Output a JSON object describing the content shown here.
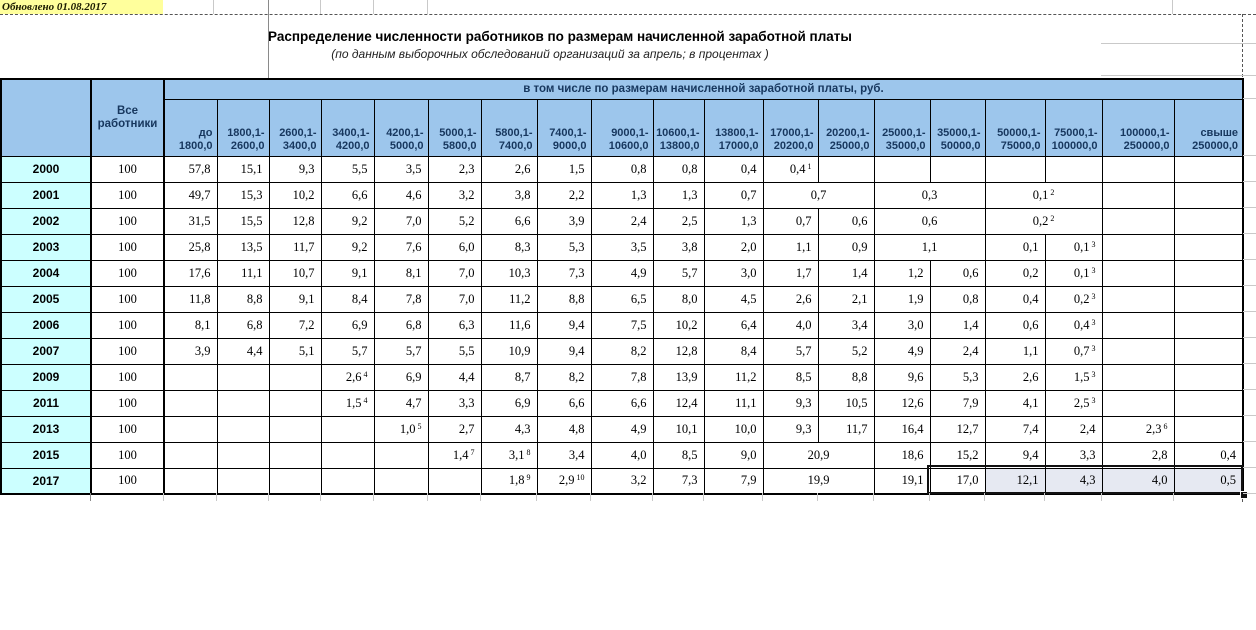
{
  "updated_note": "Обновлено 01.08.2017",
  "title": "Распределение численности работников по размерам начисленной заработной платы",
  "subtitle": "(по данным  выборочных обследований организаций  за апрель; в процентах )",
  "colors": {
    "header_blue": "#9DC6EC",
    "year_cyan": "#CCFFFF",
    "note_yellow": "#FFFF9C",
    "header_text_navy": "#17375E",
    "selection_fill": "#E6E9F2"
  },
  "table": {
    "all_workers_header": "Все\nработники",
    "group_header": "в том числе по размерам начисленной заработной платы, руб.",
    "wage_columns": [
      "до\n1800,0",
      "1800,1-\n2600,0",
      "2600,1-\n3400,0",
      "3400,1-\n4200,0",
      "4200,1-\n5000,0",
      "5000,1-\n5800,0",
      "5800,1-\n7400,0",
      "7400,1-\n9000,0",
      "9000,1-\n10600,0",
      "10600,1-\n13800,0",
      "13800,1-\n17000,0",
      "17000,1-\n20200,0",
      "20200,1-\n25000,0",
      "25000,1-\n35000,0",
      "35000,1-\n50000,0",
      "50000,1-\n75000,0",
      "75000,1-\n100000,0",
      "100000,1-\n250000,0",
      "свыше\n250000,0"
    ],
    "rows": [
      {
        "year": "2000",
        "all": "100",
        "cells": [
          {
            "v": "57,8"
          },
          {
            "v": "15,1"
          },
          {
            "v": "9,3"
          },
          {
            "v": "5,5"
          },
          {
            "v": "3,5"
          },
          {
            "v": "2,3"
          },
          {
            "v": "2,6"
          },
          {
            "v": "1,5"
          },
          {
            "v": "0,8"
          },
          {
            "v": "0,8"
          },
          {
            "v": "0,4"
          },
          {
            "v": "0,4",
            "sup": "1"
          },
          null,
          null,
          null,
          null,
          null,
          null,
          null
        ]
      },
      {
        "year": "2001",
        "all": "100",
        "cells": [
          {
            "v": "49,7"
          },
          {
            "v": "15,3"
          },
          {
            "v": "10,2"
          },
          {
            "v": "6,6"
          },
          {
            "v": "4,6"
          },
          {
            "v": "3,2"
          },
          {
            "v": "3,8"
          },
          {
            "v": "2,2"
          },
          {
            "v": "1,3"
          },
          {
            "v": "1,3"
          },
          {
            "v": "0,7"
          },
          {
            "v": "0,7",
            "span": 2
          },
          {
            "v": "0,3",
            "span": 2
          },
          {
            "v": "0,1",
            "sup": "2",
            "span": 2
          },
          null,
          null
        ]
      },
      {
        "year": "2002",
        "all": "100",
        "cells": [
          {
            "v": "31,5"
          },
          {
            "v": "15,5"
          },
          {
            "v": "12,8"
          },
          {
            "v": "9,2"
          },
          {
            "v": "7,0"
          },
          {
            "v": "5,2"
          },
          {
            "v": "6,6"
          },
          {
            "v": "3,9"
          },
          {
            "v": "2,4"
          },
          {
            "v": "2,5"
          },
          {
            "v": "1,3"
          },
          {
            "v": "0,7"
          },
          {
            "v": "0,6"
          },
          {
            "v": "0,6",
            "span": 2
          },
          {
            "v": "0,2",
            "sup": "2",
            "span": 2
          },
          null,
          null
        ]
      },
      {
        "year": "2003",
        "all": "100",
        "cells": [
          {
            "v": "25,8"
          },
          {
            "v": "13,5"
          },
          {
            "v": "11,7"
          },
          {
            "v": "9,2"
          },
          {
            "v": "7,6"
          },
          {
            "v": "6,0"
          },
          {
            "v": "8,3"
          },
          {
            "v": "5,3"
          },
          {
            "v": "3,5"
          },
          {
            "v": "3,8"
          },
          {
            "v": "2,0"
          },
          {
            "v": "1,1"
          },
          {
            "v": "0,9"
          },
          {
            "v": "1,1",
            "span": 2
          },
          {
            "v": "0,1"
          },
          {
            "v": "0,1",
            "sup": "3"
          },
          null,
          null
        ]
      },
      {
        "year": "2004",
        "all": "100",
        "cells": [
          {
            "v": "17,6"
          },
          {
            "v": "11,1"
          },
          {
            "v": "10,7"
          },
          {
            "v": "9,1"
          },
          {
            "v": "8,1"
          },
          {
            "v": "7,0"
          },
          {
            "v": "10,3"
          },
          {
            "v": "7,3"
          },
          {
            "v": "4,9"
          },
          {
            "v": "5,7"
          },
          {
            "v": "3,0"
          },
          {
            "v": "1,7"
          },
          {
            "v": "1,4"
          },
          {
            "v": "1,2"
          },
          {
            "v": "0,6"
          },
          {
            "v": "0,2"
          },
          {
            "v": "0,1",
            "sup": "3"
          },
          null,
          null
        ]
      },
      {
        "year": "2005",
        "all": "100",
        "cells": [
          {
            "v": "11,8"
          },
          {
            "v": "8,8"
          },
          {
            "v": "9,1"
          },
          {
            "v": "8,4"
          },
          {
            "v": "7,8"
          },
          {
            "v": "7,0"
          },
          {
            "v": "11,2"
          },
          {
            "v": "8,8"
          },
          {
            "v": "6,5"
          },
          {
            "v": "8,0"
          },
          {
            "v": "4,5"
          },
          {
            "v": "2,6"
          },
          {
            "v": "2,1"
          },
          {
            "v": "1,9"
          },
          {
            "v": "0,8"
          },
          {
            "v": "0,4"
          },
          {
            "v": "0,2",
            "sup": "3"
          },
          null,
          null
        ]
      },
      {
        "year": "2006",
        "all": "100",
        "cells": [
          {
            "v": "8,1"
          },
          {
            "v": "6,8"
          },
          {
            "v": "7,2"
          },
          {
            "v": "6,9"
          },
          {
            "v": "6,8"
          },
          {
            "v": "6,3"
          },
          {
            "v": "11,6"
          },
          {
            "v": "9,4"
          },
          {
            "v": "7,5"
          },
          {
            "v": "10,2"
          },
          {
            "v": "6,4"
          },
          {
            "v": "4,0"
          },
          {
            "v": "3,4"
          },
          {
            "v": "3,0"
          },
          {
            "v": "1,4"
          },
          {
            "v": "0,6"
          },
          {
            "v": "0,4",
            "sup": "3"
          },
          null,
          null
        ]
      },
      {
        "year": "2007",
        "all": "100",
        "cells": [
          {
            "v": "3,9"
          },
          {
            "v": "4,4"
          },
          {
            "v": "5,1"
          },
          {
            "v": "5,7"
          },
          {
            "v": "5,7"
          },
          {
            "v": "5,5"
          },
          {
            "v": "10,9"
          },
          {
            "v": "9,4"
          },
          {
            "v": "8,2"
          },
          {
            "v": "12,8"
          },
          {
            "v": "8,4"
          },
          {
            "v": "5,7"
          },
          {
            "v": "5,2"
          },
          {
            "v": "4,9"
          },
          {
            "v": "2,4"
          },
          {
            "v": "1,1"
          },
          {
            "v": "0,7",
            "sup": "3"
          },
          null,
          null
        ]
      },
      {
        "year": "2009",
        "all": "100",
        "cells": [
          null,
          null,
          null,
          {
            "v": "2,6",
            "sup": "4"
          },
          {
            "v": "6,9"
          },
          {
            "v": "4,4"
          },
          {
            "v": "8,7"
          },
          {
            "v": "8,2"
          },
          {
            "v": "7,8"
          },
          {
            "v": "13,9"
          },
          {
            "v": "11,2"
          },
          {
            "v": "8,5"
          },
          {
            "v": "8,8"
          },
          {
            "v": "9,6"
          },
          {
            "v": "5,3"
          },
          {
            "v": "2,6"
          },
          {
            "v": "1,5",
            "sup": "3"
          },
          null,
          null
        ]
      },
      {
        "year": "2011",
        "all": "100",
        "cells": [
          null,
          null,
          null,
          {
            "v": "1,5",
            "sup": "4"
          },
          {
            "v": "4,7"
          },
          {
            "v": "3,3"
          },
          {
            "v": "6,9"
          },
          {
            "v": "6,6"
          },
          {
            "v": "6,6"
          },
          {
            "v": "12,4"
          },
          {
            "v": "11,1"
          },
          {
            "v": "9,3"
          },
          {
            "v": "10,5"
          },
          {
            "v": "12,6"
          },
          {
            "v": "7,9"
          },
          {
            "v": "4,1"
          },
          {
            "v": "2,5",
            "sup": "3"
          },
          null,
          null
        ]
      },
      {
        "year": "2013",
        "all": "100",
        "cells": [
          null,
          null,
          null,
          null,
          {
            "v": "1,0",
            "sup": "5"
          },
          {
            "v": "2,7"
          },
          {
            "v": "4,3"
          },
          {
            "v": "4,8"
          },
          {
            "v": "4,9"
          },
          {
            "v": "10,1"
          },
          {
            "v": "10,0"
          },
          {
            "v": "9,3"
          },
          {
            "v": "11,7"
          },
          {
            "v": "16,4"
          },
          {
            "v": "12,7"
          },
          {
            "v": "7,4"
          },
          {
            "v": "2,4"
          },
          {
            "v": "2,3",
            "sup": "6"
          },
          null
        ]
      },
      {
        "year": "2015",
        "all": "100",
        "cells": [
          null,
          null,
          null,
          null,
          null,
          {
            "v": "1,4",
            "sup": "7"
          },
          {
            "v": "3,1",
            "sup": "8"
          },
          {
            "v": "3,4"
          },
          {
            "v": "4,0"
          },
          {
            "v": "8,5"
          },
          {
            "v": "9,0"
          },
          {
            "v": "20,9",
            "span": 2
          },
          {
            "v": "18,6"
          },
          {
            "v": "15,2"
          },
          {
            "v": "9,4"
          },
          {
            "v": "3,3"
          },
          {
            "v": "2,8"
          },
          {
            "v": "0,4"
          }
        ]
      },
      {
        "year": "2017",
        "all": "100",
        "cells": [
          null,
          null,
          null,
          null,
          null,
          null,
          {
            "v": "1,8",
            "sup": "9"
          },
          {
            "v": "2,9",
            "sup": "10"
          },
          {
            "v": "3,2"
          },
          {
            "v": "7,3"
          },
          {
            "v": "7,9"
          },
          {
            "v": "19,9",
            "span": 2
          },
          {
            "v": "19,1"
          },
          {
            "v": "17,0",
            "active": true
          },
          {
            "v": "12,1",
            "sel": true
          },
          {
            "v": "4,3",
            "sel": true
          },
          {
            "v": "4,0",
            "sel": true
          },
          {
            "v": "0,5",
            "sel": true
          }
        ]
      }
    ]
  }
}
